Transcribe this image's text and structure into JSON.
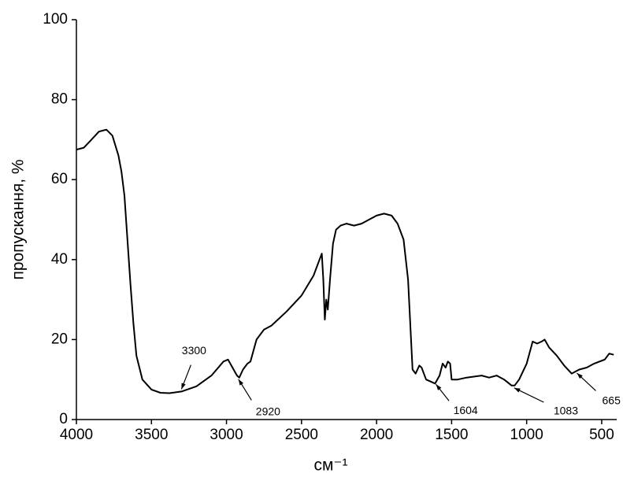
{
  "chart_data": {
    "type": "line",
    "x_label": "см⁻¹",
    "y_label": "пропускання, %",
    "xlim": [
      4000,
      400
    ],
    "ylim": [
      0,
      100
    ],
    "xticks": [
      4000,
      3500,
      3000,
      2500,
      2000,
      1500,
      1000,
      500
    ],
    "yticks": [
      0,
      20,
      40,
      60,
      80,
      100
    ],
    "series": [
      {
        "color": "#000000",
        "x": [
          4000,
          3950,
          3900,
          3850,
          3800,
          3760,
          3720,
          3700,
          3680,
          3660,
          3640,
          3620,
          3600,
          3560,
          3500,
          3440,
          3380,
          3300,
          3200,
          3100,
          3020,
          2990,
          2960,
          2930,
          2915,
          2890,
          2860,
          2840,
          2800,
          2750,
          2700,
          2600,
          2500,
          2420,
          2380,
          2365,
          2355,
          2345,
          2335,
          2325,
          2310,
          2290,
          2270,
          2240,
          2200,
          2150,
          2100,
          2050,
          2000,
          1950,
          1900,
          1860,
          1820,
          1790,
          1770,
          1760,
          1740,
          1715,
          1700,
          1670,
          1640,
          1610,
          1580,
          1560,
          1540,
          1525,
          1510,
          1500,
          1460,
          1400,
          1300,
          1250,
          1200,
          1150,
          1100,
          1080,
          1050,
          1000,
          960,
          930,
          900,
          880,
          850,
          800,
          750,
          700,
          650,
          600,
          550,
          480,
          450,
          420
        ],
        "values": [
          67.5,
          68,
          70,
          72,
          72.5,
          71,
          66,
          62,
          56,
          45,
          34,
          24,
          16,
          10,
          7.5,
          6.7,
          6.6,
          7,
          8.3,
          11,
          14.5,
          15,
          13,
          11,
          10.5,
          12.5,
          14,
          14.5,
          20,
          22.5,
          23.5,
          27,
          31,
          36,
          40,
          41.5,
          35,
          25,
          30,
          27.5,
          35,
          44,
          47.5,
          48.5,
          49,
          48.5,
          49,
          50,
          51,
          51.5,
          51,
          49,
          45,
          35,
          20,
          12.5,
          11.5,
          13.5,
          13,
          10,
          9.5,
          9,
          11,
          14,
          13,
          14.5,
          14,
          10,
          10,
          10.5,
          11,
          10.5,
          11,
          10,
          8.5,
          8.5,
          10,
          14,
          19.5,
          19,
          19.5,
          20,
          18,
          16,
          13.5,
          11.5,
          12.5,
          13,
          14,
          15,
          16.5,
          16.2
        ]
      }
    ],
    "annotations": [
      {
        "text": "3300",
        "x": 3300
      },
      {
        "text": "2920",
        "x": 2920
      },
      {
        "text": "1604",
        "x": 1604
      },
      {
        "text": "1083",
        "x": 1083
      },
      {
        "text": "665",
        "x": 665
      }
    ]
  }
}
